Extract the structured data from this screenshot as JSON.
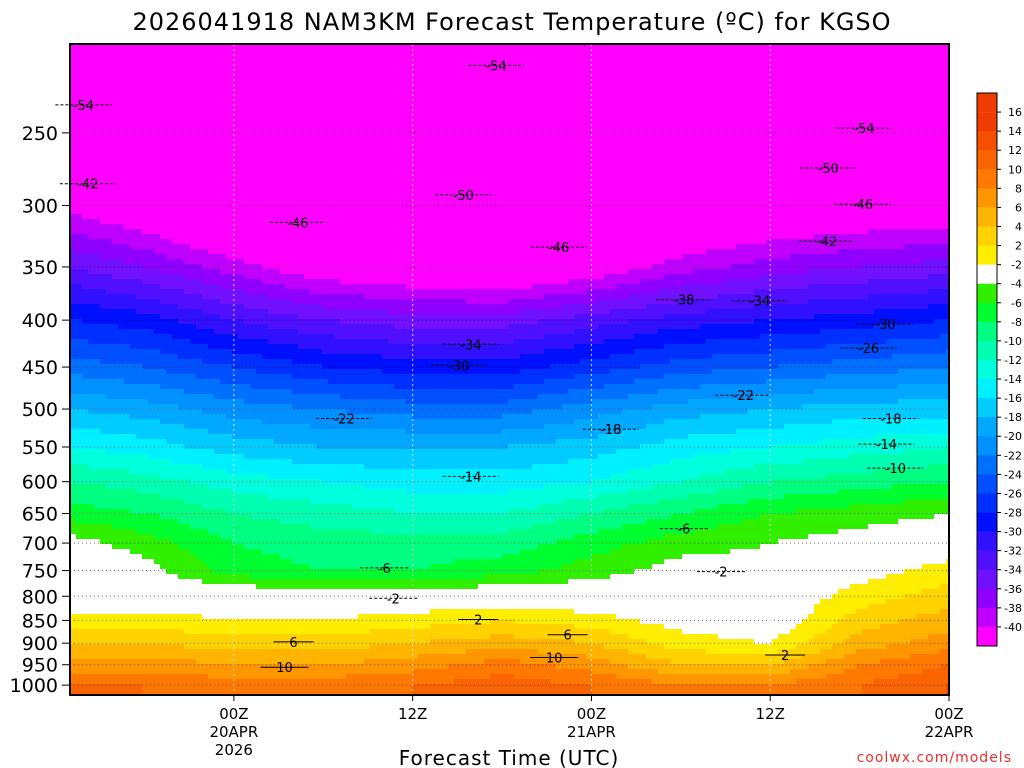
{
  "chart_data": {
    "type": "heatmap",
    "title": "2026041918 NAM3KM Forecast Temperature (ºC) for KGSO",
    "xlabel": "Forecast Time (UTC)",
    "ylabel": "",
    "watermark": "coolwx.com/models",
    "y_axis": {
      "scale": "log-pressure",
      "range": [
        1025,
        200
      ],
      "tick_labels": [
        "250",
        "300",
        "350",
        "400",
        "450",
        "500",
        "550",
        "600",
        "650",
        "700",
        "750",
        "800",
        "850",
        "900",
        "950",
        "1000"
      ]
    },
    "x_axis": {
      "range_hours": [
        -5,
        54
      ],
      "ticks": [
        {
          "hour": 6,
          "label": "00Z",
          "line2": "20APR",
          "line3": "2026"
        },
        {
          "hour": 18,
          "label": "12Z",
          "line2": "",
          "line3": ""
        },
        {
          "hour": 30,
          "label": "00Z",
          "line2": "21APR",
          "line3": ""
        },
        {
          "hour": 42,
          "label": "12Z",
          "line2": "",
          "line3": ""
        },
        {
          "hour": 54,
          "label": "00Z",
          "line2": "22APR",
          "line3": ""
        }
      ]
    },
    "grid": true,
    "legend": "right",
    "colorbar": {
      "labels": [
        "16",
        "14",
        "12",
        "10",
        "8",
        "6",
        "4",
        "2",
        "-2",
        "-4",
        "-6",
        "-8",
        "-10",
        "-12",
        "-14",
        "-16",
        "-18",
        "-20",
        "-22",
        "-24",
        "-26",
        "-28",
        "-30",
        "-32",
        "-34",
        "-36",
        "-38",
        "-40"
      ],
      "colors": [
        "#f03c00",
        "#f55000",
        "#fa6400",
        "#ff7800",
        "#ff9600",
        "#ffb400",
        "#ffd200",
        "#ffee00",
        "#ffffff",
        "#30f000",
        "#00ff30",
        "#00ff80",
        "#00ffb0",
        "#00ffdd",
        "#00f0ff",
        "#00ccff",
        "#00a8ff",
        "#0090ff",
        "#0070ff",
        "#0050ff",
        "#0030ff",
        "#0010ff",
        "#3010ff",
        "#5010ff",
        "#7010ff",
        "#9000ff",
        "#c000ff",
        "#ff00ff"
      ]
    },
    "ground_color": "#a0522d",
    "freezing_line_color": "#e0207a",
    "series": [
      {
        "level": 1000,
        "values": [
          12,
          12,
          11,
          11,
          12,
          13,
          12,
          10,
          10,
          12,
          14,
          15
        ]
      },
      {
        "level": 950,
        "values": [
          9,
          9,
          8,
          8,
          9,
          11,
          9,
          6,
          6,
          10,
          12,
          13
        ]
      },
      {
        "level": 900,
        "values": [
          6,
          6,
          5,
          5,
          6,
          7,
          6,
          3,
          2,
          7,
          9,
          10
        ]
      },
      {
        "level": 850,
        "values": [
          3,
          3,
          2,
          2,
          3,
          4,
          3,
          1,
          0,
          5,
          7,
          8
        ]
      },
      {
        "level": 800,
        "values": [
          0,
          0,
          0,
          0,
          0,
          0,
          0,
          0,
          0,
          3,
          5,
          6
        ]
      },
      {
        "level": 750,
        "values": [
          0,
          -1,
          -5,
          -6,
          -6,
          -5,
          -3,
          -1,
          -1,
          1,
          3,
          4
        ]
      },
      {
        "level": 700,
        "values": [
          -1,
          -3,
          -6,
          -7,
          -7,
          -7,
          -5,
          -3,
          -2,
          -1,
          0,
          1
        ]
      },
      {
        "level": 650,
        "values": [
          -5,
          -6,
          -8,
          -9,
          -10,
          -10,
          -8,
          -6,
          -4,
          -3,
          -2,
          -2
        ]
      },
      {
        "level": 600,
        "values": [
          -8,
          -9,
          -11,
          -12,
          -13,
          -13,
          -12,
          -10,
          -8,
          -7,
          -6,
          -6
        ]
      },
      {
        "level": 550,
        "values": [
          -12,
          -13,
          -15,
          -16,
          -16,
          -16,
          -15,
          -13,
          -12,
          -11,
          -10,
          -10
        ]
      },
      {
        "level": 500,
        "values": [
          -16,
          -17,
          -19,
          -20,
          -21,
          -21,
          -19,
          -17,
          -16,
          -15,
          -15,
          -15
        ]
      },
      {
        "level": 450,
        "values": [
          -21,
          -22,
          -24,
          -26,
          -27,
          -27,
          -25,
          -23,
          -22,
          -21,
          -20,
          -20
        ]
      },
      {
        "level": 400,
        "values": [
          -26,
          -27,
          -30,
          -32,
          -33,
          -33,
          -31,
          -29,
          -28,
          -27,
          -26,
          -26
        ]
      },
      {
        "level": 350,
        "values": [
          -32,
          -34,
          -37,
          -40,
          -41,
          -42,
          -40,
          -37,
          -35,
          -34,
          -33,
          -33
        ]
      },
      {
        "level": 300,
        "values": [
          -39,
          -41,
          -45,
          -47,
          -49,
          -48,
          -46,
          -43,
          -42,
          -41,
          -41,
          -41
        ]
      },
      {
        "level": 250,
        "values": [
          -48,
          -50,
          -52,
          -54,
          -55,
          -54,
          -52,
          -50,
          -49,
          -49,
          -50,
          -51
        ]
      },
      {
        "level": 200,
        "values": [
          -54,
          -55,
          -56,
          -57,
          -57,
          -56,
          -55,
          -54,
          -54,
          -54,
          -55,
          -56
        ]
      }
    ],
    "series_hours": [
      -5,
      0,
      6,
      12,
      18,
      24,
      30,
      36,
      42,
      48,
      54,
      54
    ],
    "contour_labels": [
      {
        "text": "-54",
        "hour": 23.6,
        "p": 211
      },
      {
        "text": "-54",
        "hour": -4.1,
        "p": 233
      },
      {
        "text": "-54",
        "hour": 48.3,
        "p": 247
      },
      {
        "text": "-50",
        "hour": 45.9,
        "p": 273
      },
      {
        "text": "-50",
        "hour": 21.4,
        "p": 292
      },
      {
        "text": "-46",
        "hour": 48.2,
        "p": 299
      },
      {
        "text": "-46",
        "hour": 10.3,
        "p": 313
      },
      {
        "text": "-46",
        "hour": 27.8,
        "p": 333
      },
      {
        "text": "-42",
        "hour": -3.8,
        "p": 284
      },
      {
        "text": "-42",
        "hour": 45.8,
        "p": 328
      },
      {
        "text": "-38",
        "hour": 36.2,
        "p": 380
      },
      {
        "text": "-34",
        "hour": 41.3,
        "p": 381
      },
      {
        "text": "-34",
        "hour": 21.9,
        "p": 425
      },
      {
        "text": "-30",
        "hour": 49.7,
        "p": 404
      },
      {
        "text": "-30",
        "hour": 21.1,
        "p": 448
      },
      {
        "text": "-26",
        "hour": 48.6,
        "p": 429
      },
      {
        "text": "-22",
        "hour": 40.2,
        "p": 483
      },
      {
        "text": "-22",
        "hour": 13.4,
        "p": 512
      },
      {
        "text": "-18",
        "hour": 31.3,
        "p": 526
      },
      {
        "text": "-18",
        "hour": 50.1,
        "p": 512
      },
      {
        "text": "-14",
        "hour": 49.8,
        "p": 546
      },
      {
        "text": "-14",
        "hour": 21.9,
        "p": 592
      },
      {
        "text": "-10",
        "hour": 50.4,
        "p": 580
      },
      {
        "text": "-6",
        "hour": 36.2,
        "p": 675
      },
      {
        "text": "-6",
        "hour": 16.1,
        "p": 745
      },
      {
        "text": "-2",
        "hour": 38.7,
        "p": 752
      },
      {
        "text": "-2",
        "hour": 16.7,
        "p": 804
      },
      {
        "text": "2",
        "hour": 22.4,
        "p": 848
      },
      {
        "text": "2",
        "hour": 43.0,
        "p": 927
      },
      {
        "text": "6",
        "hour": 28.4,
        "p": 881
      },
      {
        "text": "6",
        "hour": 10.0,
        "p": 897
      },
      {
        "text": "10",
        "hour": 27.5,
        "p": 933
      },
      {
        "text": "10",
        "hour": 9.4,
        "p": 956
      }
    ]
  }
}
